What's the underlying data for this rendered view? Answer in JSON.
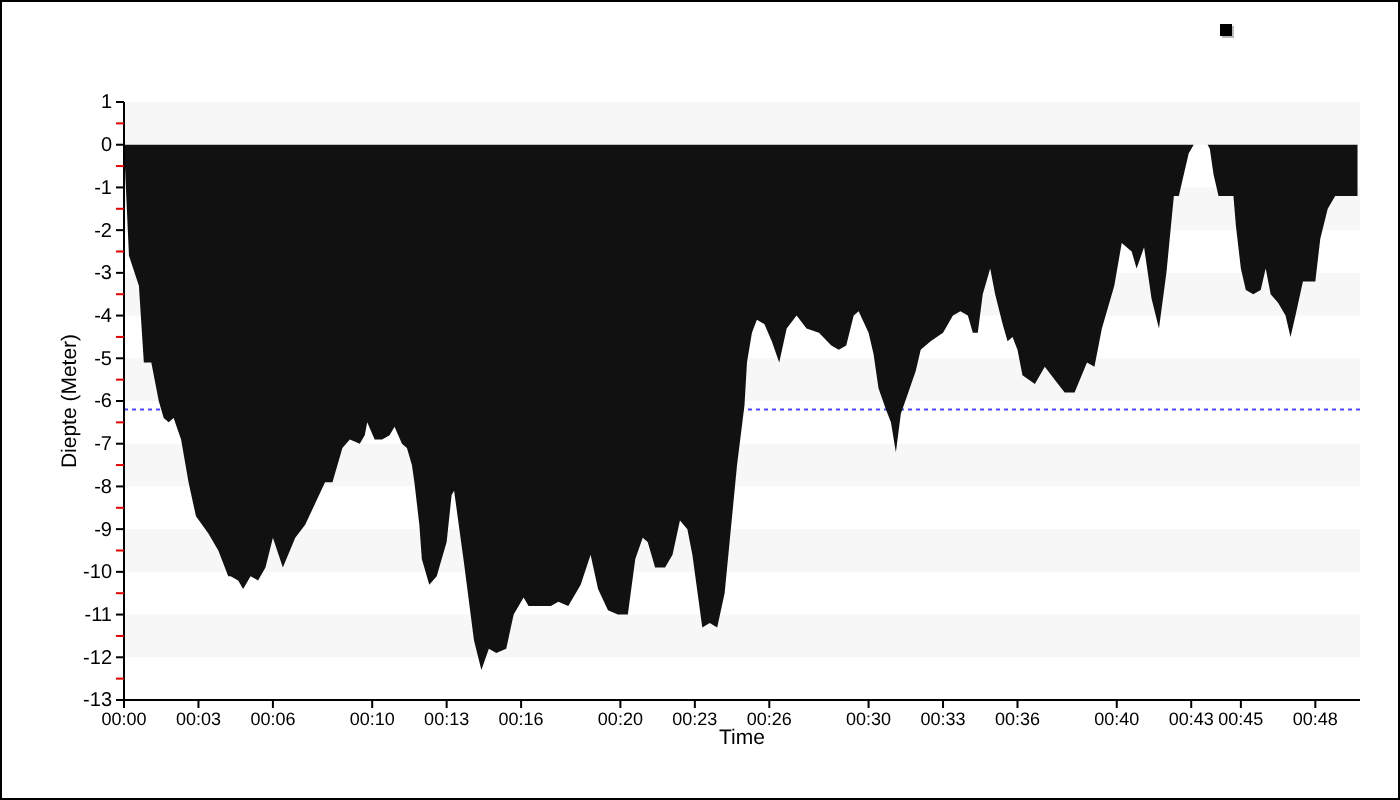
{
  "chart_data": {
    "type": "area",
    "xlabel": "Time",
    "ylabel": "Diepte (Meter)",
    "color": "#111111",
    "x": [
      0,
      0.1,
      0.2,
      0.6,
      0.8,
      1.1,
      1.4,
      1.6,
      1.8,
      2.0,
      2.3,
      2.6,
      2.9,
      3.4,
      3.8,
      4.2,
      4.3,
      4.6,
      4.8,
      5.1,
      5.4,
      5.7,
      6.0,
      6.4,
      6.9,
      7.3,
      7.7,
      8.1,
      8.4,
      8.8,
      9.1,
      9.5,
      9.7,
      9.8,
      10.1,
      10.4,
      10.7,
      10.9,
      11.2,
      11.4,
      11.6,
      11.7,
      11.9,
      12.0,
      12.3,
      12.6,
      12.8,
      13.0,
      13.2,
      13.3,
      13.7,
      14.1,
      14.4,
      14.7,
      15.0,
      15.4,
      15.7,
      16.1,
      16.3,
      17.2,
      17.5,
      17.9,
      18.4,
      18.8,
      19.1,
      19.5,
      19.9,
      20.3,
      20.6,
      20.9,
      21.1,
      21.4,
      21.8,
      22.1,
      22.4,
      22.7,
      22.9,
      23.3,
      23.6,
      23.9,
      24.2,
      24.4,
      24.7,
      25.0,
      25.1,
      25.3,
      25.5,
      25.8,
      26.1,
      26.4,
      26.7,
      27.1,
      27.5,
      28.0,
      28.5,
      28.8,
      29.1,
      29.4,
      29.6,
      30.0,
      30.2,
      30.4,
      30.7,
      30.9,
      31.1,
      31.3,
      31.6,
      31.9,
      32.1,
      32.5,
      33.0,
      33.4,
      33.7,
      34.0,
      34.2,
      34.4,
      34.6,
      34.9,
      35.1,
      35.4,
      35.6,
      35.8,
      36.0,
      36.2,
      36.7,
      37.1,
      37.5,
      37.9,
      38.3,
      38.8,
      39.1,
      39.4,
      39.9,
      40.2,
      40.6,
      40.8,
      41.1,
      41.4,
      41.7,
      42.0,
      42.3,
      42.5,
      42.7,
      42.9,
      43.1,
      43.66,
      43.75,
      43.9,
      44.1,
      44.7,
      44.8,
      45.0,
      45.2,
      45.5,
      45.8,
      46.0,
      46.2,
      46.5,
      46.8,
      47.0,
      47.2,
      47.5,
      47.7,
      48.0,
      48.2,
      48.5,
      48.8,
      49.7
    ],
    "values": [
      0,
      -1.3,
      -2.6,
      -3.3,
      -5.1,
      -5.1,
      -6.0,
      -6.4,
      -6.5,
      -6.4,
      -6.9,
      -7.9,
      -8.7,
      -9.1,
      -9.5,
      -10.1,
      -10.1,
      -10.2,
      -10.4,
      -10.1,
      -10.2,
      -9.9,
      -9.2,
      -9.9,
      -9.2,
      -8.9,
      -8.4,
      -7.9,
      -7.9,
      -7.1,
      -6.9,
      -7.0,
      -6.8,
      -6.5,
      -6.9,
      -6.9,
      -6.8,
      -6.6,
      -7.0,
      -7.1,
      -7.5,
      -7.9,
      -8.9,
      -9.7,
      -10.3,
      -10.1,
      -9.7,
      -9.3,
      -8.2,
      -8.1,
      -9.8,
      -11.6,
      -12.3,
      -11.8,
      -11.9,
      -11.8,
      -11.0,
      -10.6,
      -10.8,
      -10.8,
      -10.7,
      -10.8,
      -10.3,
      -9.6,
      -10.4,
      -10.9,
      -11.0,
      -11.0,
      -9.7,
      -9.2,
      -9.3,
      -9.9,
      -9.9,
      -9.6,
      -8.8,
      -9.0,
      -9.6,
      -11.3,
      -11.2,
      -11.3,
      -10.5,
      -9.3,
      -7.5,
      -6.1,
      -5.1,
      -4.4,
      -4.1,
      -4.2,
      -4.6,
      -5.1,
      -4.3,
      -4.0,
      -4.3,
      -4.4,
      -4.7,
      -4.8,
      -4.7,
      -4.0,
      -3.9,
      -4.4,
      -4.9,
      -5.7,
      -6.2,
      -6.5,
      -7.2,
      -6.3,
      -5.8,
      -5.3,
      -4.8,
      -4.6,
      -4.4,
      -4.0,
      -3.9,
      -4.0,
      -4.4,
      -4.4,
      -3.5,
      -2.9,
      -3.5,
      -4.2,
      -4.6,
      -4.5,
      -4.8,
      -5.4,
      -5.6,
      -5.2,
      -5.5,
      -5.8,
      -5.8,
      -5.1,
      -5.2,
      -4.3,
      -3.3,
      -2.3,
      -2.5,
      -2.9,
      -2.4,
      -3.6,
      -4.3,
      -3.0,
      -1.2,
      -1.2,
      -0.7,
      -0.2,
      0,
      0,
      -0.1,
      -0.7,
      -1.2,
      -1.2,
      -1.9,
      -2.9,
      -3.4,
      -3.5,
      -3.4,
      -2.9,
      -3.5,
      -3.7,
      -4.0,
      -4.5,
      -4.0,
      -3.2,
      -3.2,
      -3.2,
      -2.2,
      -1.5,
      -1.2,
      -1.2
    ],
    "xlim": [
      0,
      49.8
    ],
    "ylim": [
      -13,
      1
    ],
    "xticks": [
      {
        "value": 0,
        "label": "00:00"
      },
      {
        "value": 3,
        "label": "00:03"
      },
      {
        "value": 6,
        "label": "00:06"
      },
      {
        "value": 10,
        "label": "00:10"
      },
      {
        "value": 13,
        "label": "00:13"
      },
      {
        "value": 16,
        "label": "00:16"
      },
      {
        "value": 20,
        "label": "00:20"
      },
      {
        "value": 23,
        "label": "00:23"
      },
      {
        "value": 26,
        "label": "00:26"
      },
      {
        "value": 30,
        "label": "00:30"
      },
      {
        "value": 33,
        "label": "00:33"
      },
      {
        "value": 36,
        "label": "00:36"
      },
      {
        "value": 40,
        "label": "00:40"
      },
      {
        "value": 43,
        "label": "00:43"
      },
      {
        "value": 45,
        "label": "00:45"
      },
      {
        "value": 48,
        "label": "00:48"
      }
    ],
    "yticks": [
      -13,
      {
        "value": -12.5,
        "label": null
      },
      -12,
      {
        "value": -11.5,
        "label": null
      },
      -11,
      {
        "value": -10.5,
        "label": null
      },
      -10,
      {
        "value": -9.5,
        "label": null
      },
      -9,
      {
        "value": -8.5,
        "label": null
      },
      -8,
      {
        "value": -7.5,
        "label": null
      },
      -7,
      {
        "value": -6.5,
        "label": null
      },
      -6,
      {
        "value": -5.5,
        "label": null
      },
      -5,
      {
        "value": -4.5,
        "label": null
      },
      -4,
      {
        "value": -3.5,
        "label": null
      },
      -3,
      {
        "value": -2.5,
        "label": null
      },
      -2,
      {
        "value": -1.5,
        "label": null
      },
      -1,
      {
        "value": -0.5,
        "label": null
      },
      0,
      {
        "value": 0.5,
        "label": null
      },
      1
    ],
    "bands": [
      {
        "axis": "y",
        "from": 0,
        "to": 1,
        "color": "#f7f7f7"
      },
      {
        "axis": "y",
        "from": -2,
        "to": -1,
        "color": "#f7f7f7"
      },
      {
        "axis": "y",
        "from": -4,
        "to": -3,
        "color": "#f7f7f7"
      },
      {
        "axis": "y",
        "from": -6,
        "to": -5,
        "color": "#f7f7f7"
      },
      {
        "axis": "y",
        "from": -8,
        "to": -7,
        "color": "#f7f7f7"
      },
      {
        "axis": "y",
        "from": -10,
        "to": -9,
        "color": "#f7f7f7"
      },
      {
        "axis": "y",
        "from": -12,
        "to": -11,
        "color": "#f7f7f7"
      }
    ],
    "ref_lines": [
      {
        "axis": "y",
        "value": -6.2,
        "color": "#4a4aff",
        "line_style": "dotted"
      }
    ]
  }
}
